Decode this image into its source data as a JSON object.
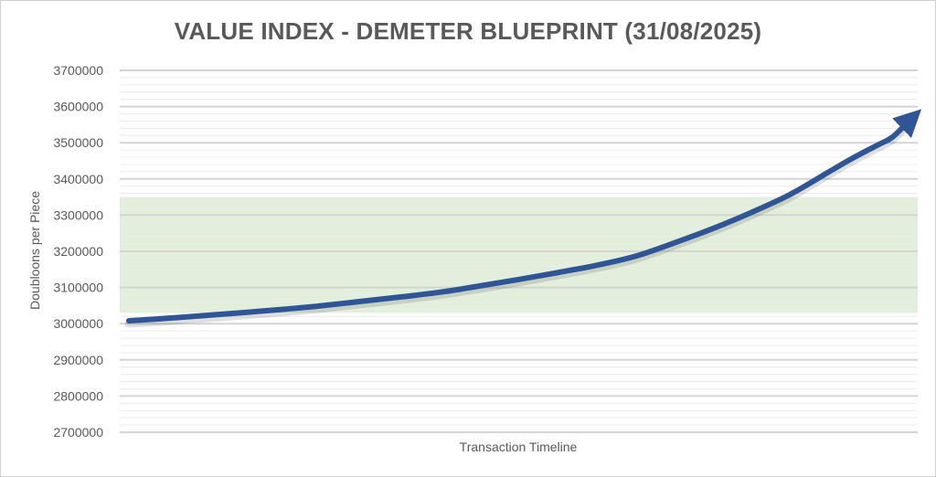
{
  "chart_data": {
    "type": "line",
    "title": "VALUE INDEX - DEMETER BLUEPRINT (31/08/2025)",
    "xlabel": "Transaction Timeline",
    "ylabel": "Doubloons per Piece",
    "ylim": [
      2700000,
      3700000
    ],
    "yticks": [
      "3700000",
      "3600000",
      "3500000",
      "3400000",
      "3300000",
      "3200000",
      "3100000",
      "3000000",
      "2900000",
      "2800000",
      "2700000"
    ],
    "minor_grid": true,
    "band": {
      "from": 3030000,
      "to": 3350000,
      "color": "#e2efda"
    },
    "series": [
      {
        "color": "#2f5597",
        "x": [
          0,
          0.05,
          0.1,
          0.15,
          0.2,
          0.25,
          0.3,
          0.35,
          0.4,
          0.45,
          0.5,
          0.55,
          0.6,
          0.65,
          0.7,
          0.75,
          0.8,
          0.85,
          0.9,
          0.93,
          0.96,
          0.98,
          1.0
        ],
        "values": [
          3008000,
          3015000,
          3023000,
          3031000,
          3040000,
          3050000,
          3062000,
          3074000,
          3087000,
          3104000,
          3122000,
          3141000,
          3161000,
          3186000,
          3223000,
          3263000,
          3308000,
          3358000,
          3421000,
          3458000,
          3492000,
          3515000,
          3556000
        ]
      }
    ]
  }
}
